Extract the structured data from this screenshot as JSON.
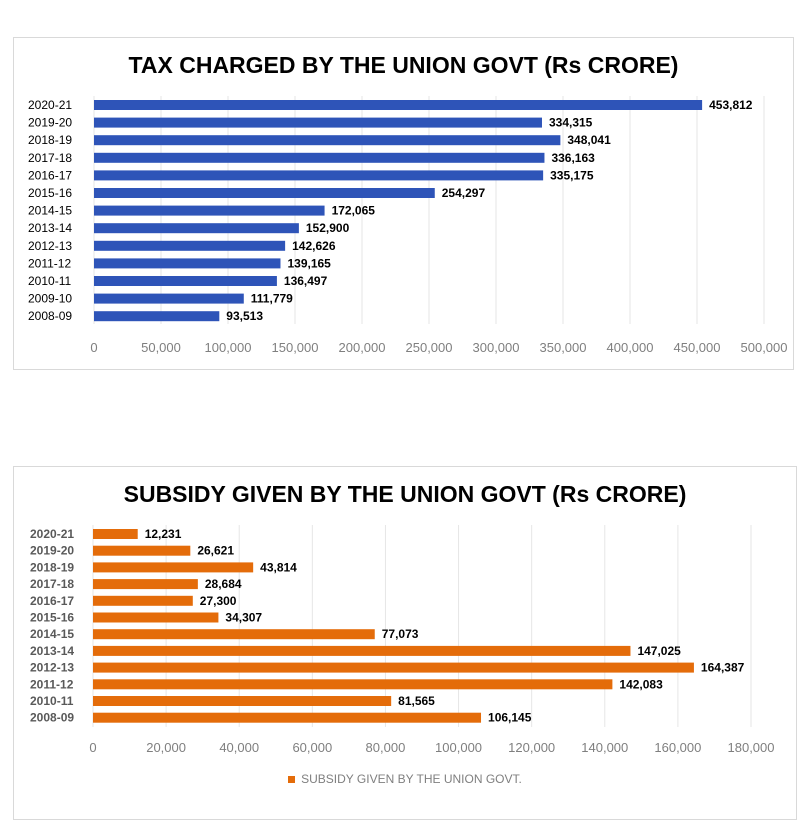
{
  "chart_data": [
    {
      "type": "bar",
      "orientation": "horizontal",
      "title": "TAX CHARGED BY THE UNION GOVT (Rs CRORE)",
      "categories": [
        "2020-21",
        "2019-20",
        "2018-19",
        "2017-18",
        "2016-17",
        "2015-16",
        "2014-15",
        "2013-14",
        "2012-13",
        "2011-12",
        "2010-11",
        "2009-10",
        "2008-09"
      ],
      "values": [
        453812,
        334315,
        348041,
        336163,
        335175,
        254297,
        172065,
        152900,
        142626,
        139165,
        136497,
        111779,
        93513
      ],
      "value_labels": [
        "453,812",
        "334,315",
        "348,041",
        "336,163",
        "335,175",
        "254,297",
        "172,065",
        "152,900",
        "142,626",
        "139,165",
        "136,497",
        "111,779",
        "93,513"
      ],
      "xlim": [
        0,
        500000
      ],
      "x_ticks": [
        0,
        50000,
        100000,
        150000,
        200000,
        250000,
        300000,
        350000,
        400000,
        450000,
        500000
      ],
      "x_tick_labels": [
        "0",
        "50,000",
        "100,000",
        "150,000",
        "200,000",
        "250,000",
        "300,000",
        "350,000",
        "400,000",
        "450,000",
        "500,000"
      ],
      "grid": true,
      "bar_color": "#2e54b8",
      "legend": null
    },
    {
      "type": "bar",
      "orientation": "horizontal",
      "title": "SUBSIDY GIVEN BY THE UNION GOVT (Rs CRORE)",
      "categories": [
        "2020-21",
        "2019-20",
        "2018-19",
        "2017-18",
        "2016-17",
        "2015-16",
        "2014-15",
        "2013-14",
        "2012-13",
        "2011-12",
        "2010-11",
        "2008-09"
      ],
      "values": [
        12231,
        26621,
        43814,
        28684,
        27300,
        34307,
        77073,
        147025,
        164387,
        142083,
        81565,
        106145
      ],
      "value_labels": [
        "12,231",
        "26,621",
        "43,814",
        "28,684",
        "27,300",
        "34,307",
        "77,073",
        "147,025",
        "164,387",
        "142,083",
        "81,565",
        "106,145"
      ],
      "xlim": [
        0,
        180000
      ],
      "x_ticks": [
        0,
        20000,
        40000,
        60000,
        80000,
        100000,
        120000,
        140000,
        160000,
        180000
      ],
      "x_tick_labels": [
        "0",
        "20,000",
        "40,000",
        "60,000",
        "80,000",
        "100,000",
        "120,000",
        "140,000",
        "160,000",
        "180,000"
      ],
      "grid": true,
      "bar_color": "#e46c0a",
      "legend": {
        "label": "SUBSIDY GIVEN BY THE UNION GOVT.",
        "position": "bottom"
      }
    }
  ]
}
